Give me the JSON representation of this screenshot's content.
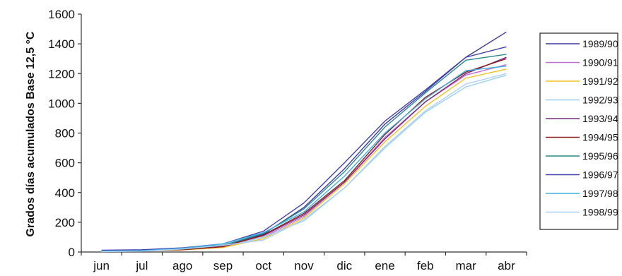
{
  "chart_data": {
    "type": "line",
    "title": "",
    "xlabel": "",
    "ylabel": "Grados días acumulados Base 12,5 °C",
    "categories": [
      "jun",
      "jul",
      "ago",
      "sep",
      "oct",
      "nov",
      "dic",
      "ene",
      "feb",
      "mar",
      "abr"
    ],
    "ylim": [
      0,
      1600
    ],
    "yticks": [
      0,
      200,
      400,
      600,
      800,
      1000,
      1200,
      1400,
      1600
    ],
    "grid": false,
    "legend_position": "right",
    "series": [
      {
        "name": "1989/90",
        "color": "#3d3d9e",
        "values": [
          10,
          12,
          25,
          45,
          120,
          300,
          560,
          860,
          1080,
          1310,
          1480
        ]
      },
      {
        "name": "1990/91",
        "color": "#c070d0",
        "values": [
          5,
          8,
          15,
          35,
          100,
          240,
          470,
          770,
          1010,
          1190,
          1260
        ]
      },
      {
        "name": "1991/92",
        "color": "#f0c020",
        "values": [
          5,
          8,
          14,
          30,
          90,
          230,
          460,
          740,
          980,
          1170,
          1230
        ]
      },
      {
        "name": "1992/93",
        "color": "#9fcfef",
        "values": [
          4,
          7,
          20,
          40,
          100,
          210,
          430,
          700,
          940,
          1110,
          1190
        ]
      },
      {
        "name": "1993/94",
        "color": "#7a2a80",
        "values": [
          8,
          10,
          18,
          40,
          110,
          250,
          470,
          760,
          1010,
          1200,
          1310
        ]
      },
      {
        "name": "1994/95",
        "color": "#8a1e1e",
        "values": [
          8,
          10,
          15,
          35,
          115,
          260,
          480,
          790,
          1040,
          1210,
          1300
        ]
      },
      {
        "name": "1995/96",
        "color": "#2a8a8a",
        "values": [
          10,
          12,
          25,
          45,
          125,
          290,
          540,
          840,
          1070,
          1290,
          1330
        ]
      },
      {
        "name": "1996/97",
        "color": "#4040b0",
        "values": [
          12,
          15,
          28,
          55,
          140,
          330,
          600,
          880,
          1090,
          1310,
          1380
        ]
      },
      {
        "name": "1997/98",
        "color": "#3fb0e0",
        "values": [
          6,
          9,
          25,
          55,
          130,
          270,
          510,
          800,
          1030,
          1220,
          1250
        ]
      },
      {
        "name": "1998/99",
        "color": "#aad0f0",
        "values": [
          3,
          5,
          20,
          45,
          80,
          220,
          430,
          710,
          950,
          1130,
          1200
        ]
      }
    ]
  }
}
